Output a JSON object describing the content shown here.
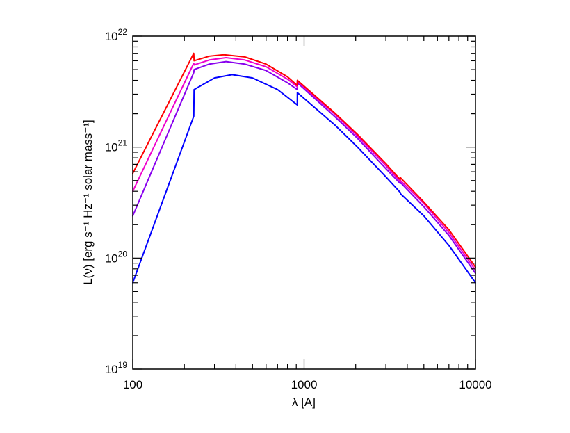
{
  "chart_data": {
    "type": "line",
    "title": "",
    "xlabel": "λ [A]",
    "ylabel": "L(ν) [erg s⁻¹ Hz⁻¹ solar mass⁻¹]",
    "xscale": "log",
    "yscale": "log",
    "xlim": [
      100,
      10000
    ],
    "ylim": [
      1e+19,
      1e+22
    ],
    "grid": false,
    "legend": "none",
    "x_ticks": [
      {
        "value": 100,
        "label": "100"
      },
      {
        "value": 1000,
        "label": "1000"
      },
      {
        "value": 10000,
        "label": "10000"
      }
    ],
    "y_ticks": [
      {
        "value": 1e+19,
        "base": "10",
        "exp": "19"
      },
      {
        "value": 1e+20,
        "base": "10",
        "exp": "20"
      },
      {
        "value": 1e+21,
        "base": "10",
        "exp": "21"
      },
      {
        "value": 1e+22,
        "base": "10",
        "exp": "22"
      }
    ],
    "series": [
      {
        "color": "#0000ff",
        "points": [
          [
            100,
            6e+19
          ],
          [
            227,
            1.9e+21
          ],
          [
            228,
            3.3e+21
          ],
          [
            300,
            4.2e+21
          ],
          [
            380,
            4.5e+21
          ],
          [
            500,
            4.2e+21
          ],
          [
            700,
            3.3e+21
          ],
          [
            912,
            2.4e+21
          ],
          [
            913,
            3.1e+21
          ],
          [
            1500,
            1.6e+21
          ],
          [
            2050,
            1e+21
          ],
          [
            3000,
            5.4e+20
          ],
          [
            3640,
            3.9e+20
          ],
          [
            3650,
            3.8e+20
          ],
          [
            5000,
            2.4e+20
          ],
          [
            7000,
            1.3e+20
          ],
          [
            10000,
            6e+19
          ]
        ]
      },
      {
        "color": "#8800ee",
        "points": [
          [
            100,
            2.4e+20
          ],
          [
            227,
            4.7e+21
          ],
          [
            228,
            5e+21
          ],
          [
            280,
            5.6e+21
          ],
          [
            350,
            5.9e+21
          ],
          [
            450,
            5.6e+21
          ],
          [
            600,
            4.9e+21
          ],
          [
            800,
            3.8e+21
          ],
          [
            912,
            3.3e+21
          ],
          [
            913,
            3.8e+21
          ],
          [
            1500,
            1.9e+21
          ],
          [
            2050,
            1.2e+21
          ],
          [
            3000,
            6.4e+20
          ],
          [
            3640,
            4.7e+20
          ],
          [
            3650,
            4.8e+20
          ],
          [
            5000,
            2.9e+20
          ],
          [
            7000,
            1.6e+20
          ],
          [
            10000,
            7.3e+19
          ]
        ]
      },
      {
        "color": "#ee00cc",
        "points": [
          [
            100,
            4e+20
          ],
          [
            227,
            5.7e+21
          ],
          [
            228,
            5.5e+21
          ],
          [
            280,
            6.1e+21
          ],
          [
            350,
            6.4e+21
          ],
          [
            450,
            6.1e+21
          ],
          [
            600,
            5.3e+21
          ],
          [
            800,
            4.1e+21
          ],
          [
            912,
            3.5e+21
          ],
          [
            913,
            3.9e+21
          ],
          [
            1500,
            2e+21
          ],
          [
            2050,
            1.26e+21
          ],
          [
            3000,
            6.8e+20
          ],
          [
            3640,
            4.9e+20
          ],
          [
            3650,
            5e+20
          ],
          [
            5000,
            3.1e+20
          ],
          [
            7000,
            1.7e+20
          ],
          [
            10000,
            7.8e+19
          ]
        ]
      },
      {
        "color": "#ff0000",
        "points": [
          [
            100,
            5.8e+20
          ],
          [
            227,
            7e+21
          ],
          [
            228,
            6e+21
          ],
          [
            280,
            6.6e+21
          ],
          [
            340,
            6.8e+21
          ],
          [
            450,
            6.5e+21
          ],
          [
            600,
            5.6e+21
          ],
          [
            800,
            4.3e+21
          ],
          [
            912,
            3.6e+21
          ],
          [
            913,
            4e+21
          ],
          [
            1500,
            2.05e+21
          ],
          [
            2050,
            1.3e+21
          ],
          [
            3000,
            7.1e+20
          ],
          [
            3640,
            5.1e+20
          ],
          [
            3650,
            5.3e+20
          ],
          [
            5000,
            3.2e+20
          ],
          [
            7000,
            1.8e+20
          ],
          [
            10000,
            8.3e+19
          ]
        ]
      }
    ]
  }
}
